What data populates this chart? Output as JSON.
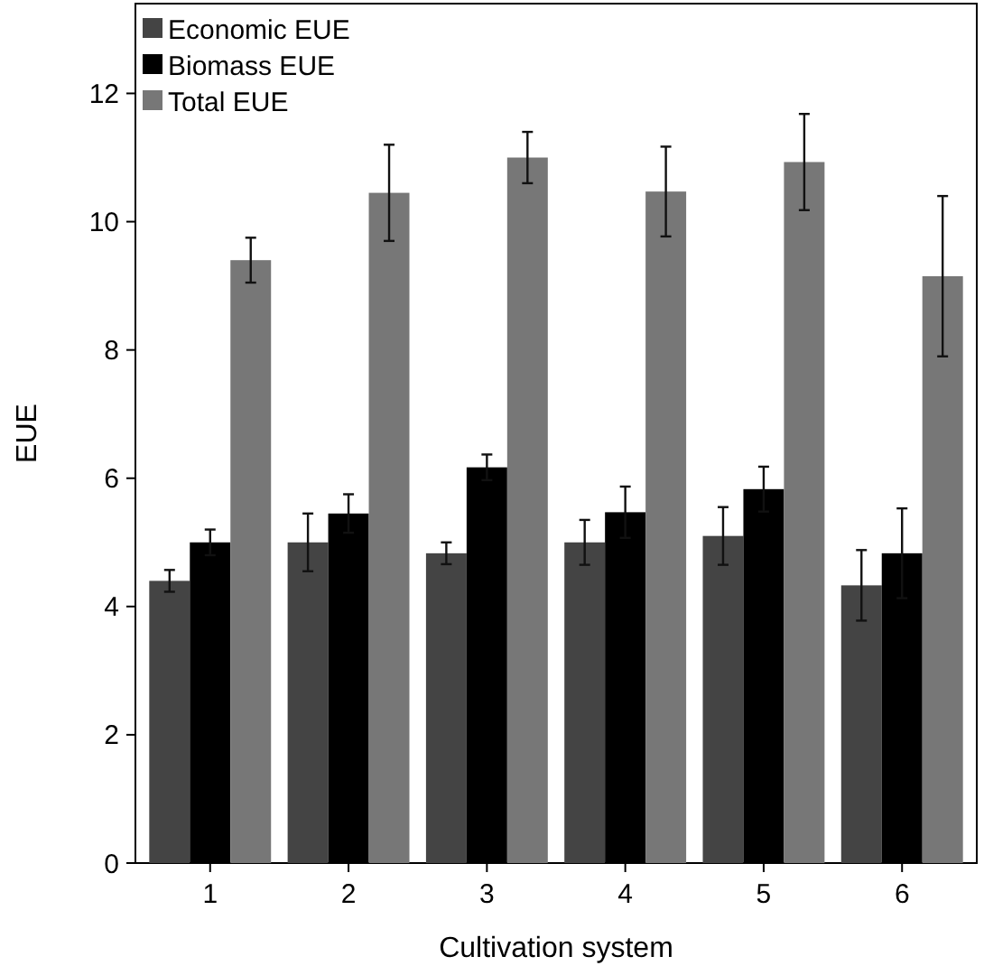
{
  "chart_data": {
    "type": "bar",
    "xlabel": "Cultivation system",
    "ylabel": "EUE",
    "categories": [
      "1",
      "2",
      "3",
      "4",
      "5",
      "6"
    ],
    "series": [
      {
        "name": "Economic EUE",
        "color": "#444444",
        "values": [
          4.4,
          5.0,
          4.83,
          5.0,
          5.1,
          4.33
        ],
        "errors": [
          0.17,
          0.45,
          0.17,
          0.35,
          0.45,
          0.55
        ]
      },
      {
        "name": "Biomass EUE",
        "color": "#000000",
        "values": [
          5.0,
          5.45,
          6.17,
          5.47,
          5.83,
          4.83
        ],
        "errors": [
          0.2,
          0.3,
          0.2,
          0.4,
          0.35,
          0.7
        ]
      },
      {
        "name": "Total EUE",
        "color": "#777777",
        "values": [
          9.4,
          10.45,
          11.0,
          10.47,
          10.93,
          9.15
        ],
        "errors": [
          0.35,
          0.75,
          0.4,
          0.7,
          0.75,
          1.25
        ]
      }
    ],
    "ylim": [
      0,
      13.4
    ],
    "yticks": [
      0,
      2,
      4,
      6,
      8,
      10,
      12
    ],
    "grid": false,
    "legend": "top left"
  }
}
